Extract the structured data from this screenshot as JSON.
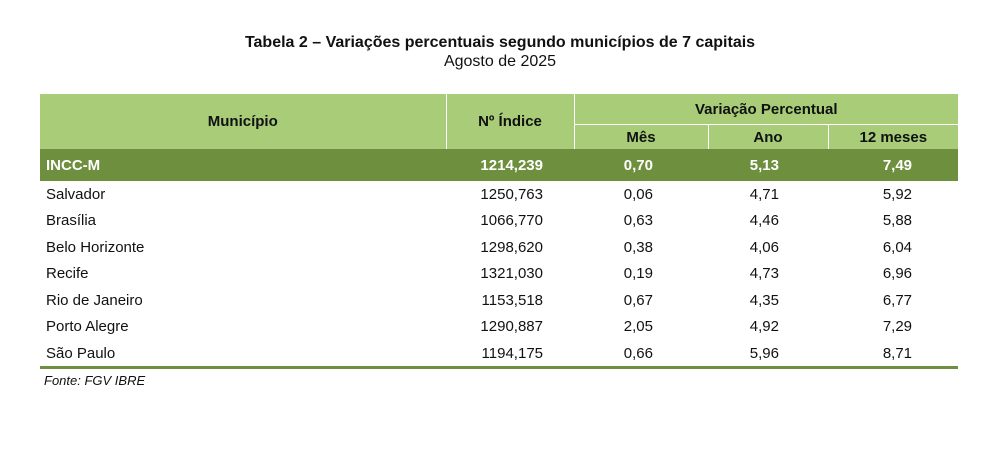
{
  "title": "Tabela 2 – Variações percentuais segundo municípios de 7 capitais",
  "subtitle": "Agosto de 2025",
  "headers": {
    "municipio": "Município",
    "indice": "Nº Índice",
    "variacao": "Variação Percentual",
    "mes": "Mês",
    "ano": "Ano",
    "doze": "12 meses"
  },
  "total_row": {
    "name": "INCC-M",
    "indice": "1214,239",
    "mes": "0,70",
    "ano": "5,13",
    "doze": "7,49"
  },
  "rows": [
    {
      "name": "Salvador",
      "indice": "1250,763",
      "mes": "0,06",
      "ano": "4,71",
      "doze": "5,92"
    },
    {
      "name": "Brasília",
      "indice": "1066,770",
      "mes": "0,63",
      "ano": "4,46",
      "doze": "5,88"
    },
    {
      "name": "Belo Horizonte",
      "indice": "1298,620",
      "mes": "0,38",
      "ano": "4,06",
      "doze": "6,04"
    },
    {
      "name": "Recife",
      "indice": "1321,030",
      "mes": "0,19",
      "ano": "4,73",
      "doze": "6,96"
    },
    {
      "name": "Rio de Janeiro",
      "indice": "1153,518",
      "mes": "0,67",
      "ano": "4,35",
      "doze": "6,77"
    },
    {
      "name": "Porto Alegre",
      "indice": "1290,887",
      "mes": "2,05",
      "ano": "4,92",
      "doze": "7,29"
    },
    {
      "name": "São Paulo",
      "indice": "1194,175",
      "mes": "0,66",
      "ano": "5,96",
      "doze": "8,71"
    }
  ],
  "source": "Fonte: FGV IBRE",
  "colors": {
    "header_green": "#a8cc78",
    "total_green": "#6e8f3e"
  }
}
